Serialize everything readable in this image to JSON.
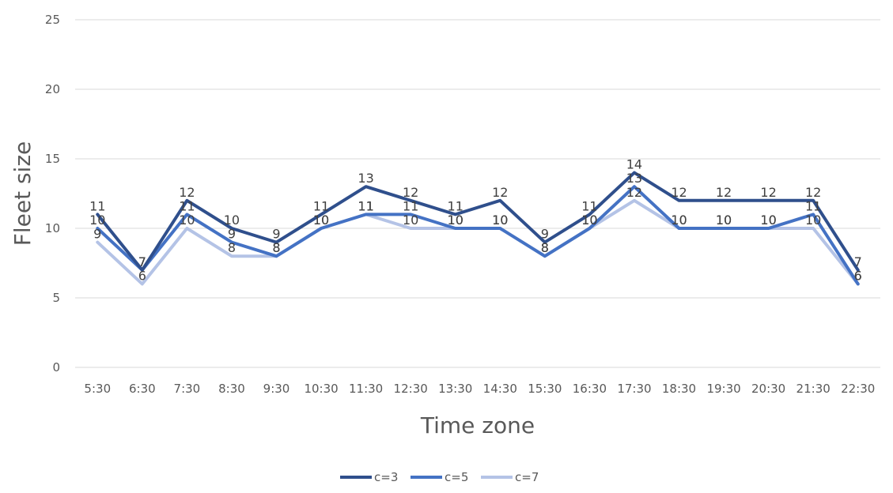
{
  "chart_data": {
    "type": "line",
    "title": "",
    "xlabel": "Time zone",
    "ylabel": "Fleet size",
    "categories": [
      "5:30",
      "6:30",
      "7:30",
      "8:30",
      "9:30",
      "10:30",
      "11:30",
      "12:30",
      "13:30",
      "14:30",
      "15:30",
      "16:30",
      "17:30",
      "18:30",
      "19:30",
      "20:30",
      "21:30",
      "22:30"
    ],
    "ylim": [
      0,
      25
    ],
    "yticks": [
      "0",
      "5",
      "10",
      "15",
      "20",
      "25"
    ],
    "grid": true,
    "legend_position": "bottom",
    "series": [
      {
        "name": "c=3",
        "color": "#2f4f8c",
        "values": [
          11,
          7,
          12,
          10,
          9,
          11,
          13,
          12,
          11,
          12,
          9,
          11,
          14,
          12,
          12,
          12,
          12,
          7
        ]
      },
      {
        "name": "c=5",
        "color": "#4472c4",
        "values": [
          10,
          7,
          11,
          9,
          8,
          10,
          11,
          11,
          10,
          10,
          8,
          10,
          13,
          10,
          10,
          10,
          11,
          6
        ]
      },
      {
        "name": "c=7",
        "color": "#b4c3e6",
        "values": [
          9,
          6,
          10,
          8,
          8,
          10,
          11,
          10,
          10,
          10,
          8,
          10,
          12,
          10,
          10,
          10,
          10,
          6
        ]
      }
    ]
  }
}
